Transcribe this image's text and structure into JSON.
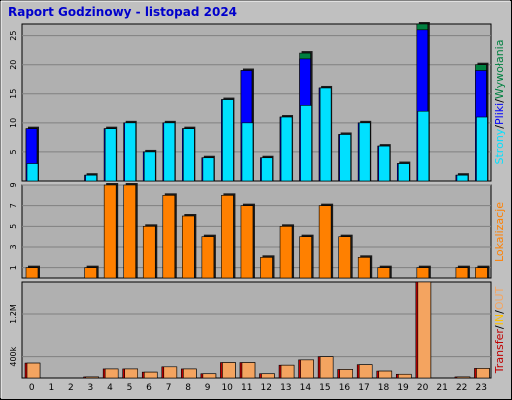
{
  "title": "Raport Godzinowy -  listopad 2024",
  "colors": {
    "background": "#C0C0C0",
    "plot_bg": "#B0B0B0",
    "title": "#0000CC",
    "hits": "#008040",
    "files": "#0000FF",
    "pages": "#00E0FF",
    "visits": "#FF8000",
    "kbytes": "#C00000",
    "kbytes_in": "#FFC000",
    "kbytes_out": "#F4A460"
  },
  "chart_data": [
    {
      "type": "bar",
      "name_label": "hits-files-pages",
      "categories": [
        "0",
        "1",
        "2",
        "3",
        "4",
        "5",
        "6",
        "7",
        "8",
        "9",
        "10",
        "11",
        "12",
        "13",
        "14",
        "15",
        "16",
        "17",
        "18",
        "19",
        "20",
        "21",
        "22",
        "23"
      ],
      "ylim": [
        0,
        27
      ],
      "yticks": [
        5,
        10,
        15,
        20,
        25
      ],
      "series": [
        {
          "name": "Wywołania",
          "values": [
            9,
            0,
            0,
            1,
            9,
            10,
            5,
            10,
            9,
            4,
            14,
            19,
            4,
            11,
            22,
            16,
            8,
            10,
            6,
            3,
            27,
            0,
            1,
            20
          ]
        },
        {
          "name": "Pliki",
          "values": [
            9,
            0,
            0,
            1,
            9,
            10,
            5,
            10,
            9,
            4,
            14,
            19,
            4,
            11,
            21,
            16,
            8,
            10,
            6,
            3,
            26,
            0,
            1,
            19
          ]
        },
        {
          "name": "Strony",
          "values": [
            3,
            0,
            0,
            1,
            9,
            10,
            5,
            10,
            9,
            4,
            14,
            10,
            4,
            11,
            13,
            16,
            8,
            10,
            6,
            3,
            12,
            0,
            1,
            11
          ]
        }
      ],
      "legend": [
        "Strony",
        "/",
        "Pliki",
        "/",
        "Wywołania"
      ]
    },
    {
      "type": "bar",
      "name_label": "visits",
      "categories": [
        "0",
        "1",
        "2",
        "3",
        "4",
        "5",
        "6",
        "7",
        "8",
        "9",
        "10",
        "11",
        "12",
        "13",
        "14",
        "15",
        "16",
        "17",
        "18",
        "19",
        "20",
        "21",
        "22",
        "23"
      ],
      "ylim": [
        0,
        9
      ],
      "yticks": [
        1,
        3,
        5,
        7,
        9
      ],
      "series": [
        {
          "name": "Lokalizacje",
          "values": [
            1,
            0,
            0,
            1,
            9,
            9,
            5,
            8,
            6,
            4,
            8,
            7,
            2,
            5,
            4,
            7,
            4,
            2,
            1,
            0,
            1,
            0,
            1,
            1
          ]
        }
      ],
      "legend": [
        "Lokalizacje"
      ]
    },
    {
      "type": "bar",
      "name_label": "transfer",
      "categories": [
        "0",
        "1",
        "2",
        "3",
        "4",
        "5",
        "6",
        "7",
        "8",
        "9",
        "10",
        "11",
        "12",
        "13",
        "14",
        "15",
        "16",
        "17",
        "18",
        "19",
        "20",
        "21",
        "22",
        "23"
      ],
      "ylim": [
        0,
        1800
      ],
      "yticks_labels": [
        "400k",
        "1.2M"
      ],
      "yticks": [
        400,
        1200
      ],
      "series": [
        {
          "name": "Transfer",
          "values": [
            280,
            0,
            0,
            20,
            170,
            170,
            110,
            210,
            170,
            80,
            290,
            290,
            80,
            240,
            340,
            400,
            160,
            250,
            130,
            70,
            1800,
            0,
            20,
            180
          ]
        },
        {
          "name": "OUT",
          "values": [
            280,
            0,
            0,
            20,
            170,
            170,
            110,
            210,
            170,
            80,
            290,
            290,
            80,
            240,
            340,
            400,
            160,
            250,
            130,
            70,
            1800,
            0,
            20,
            180
          ]
        }
      ],
      "legend": [
        "Transfer",
        "/",
        "IN",
        "/",
        "OUT"
      ]
    }
  ]
}
